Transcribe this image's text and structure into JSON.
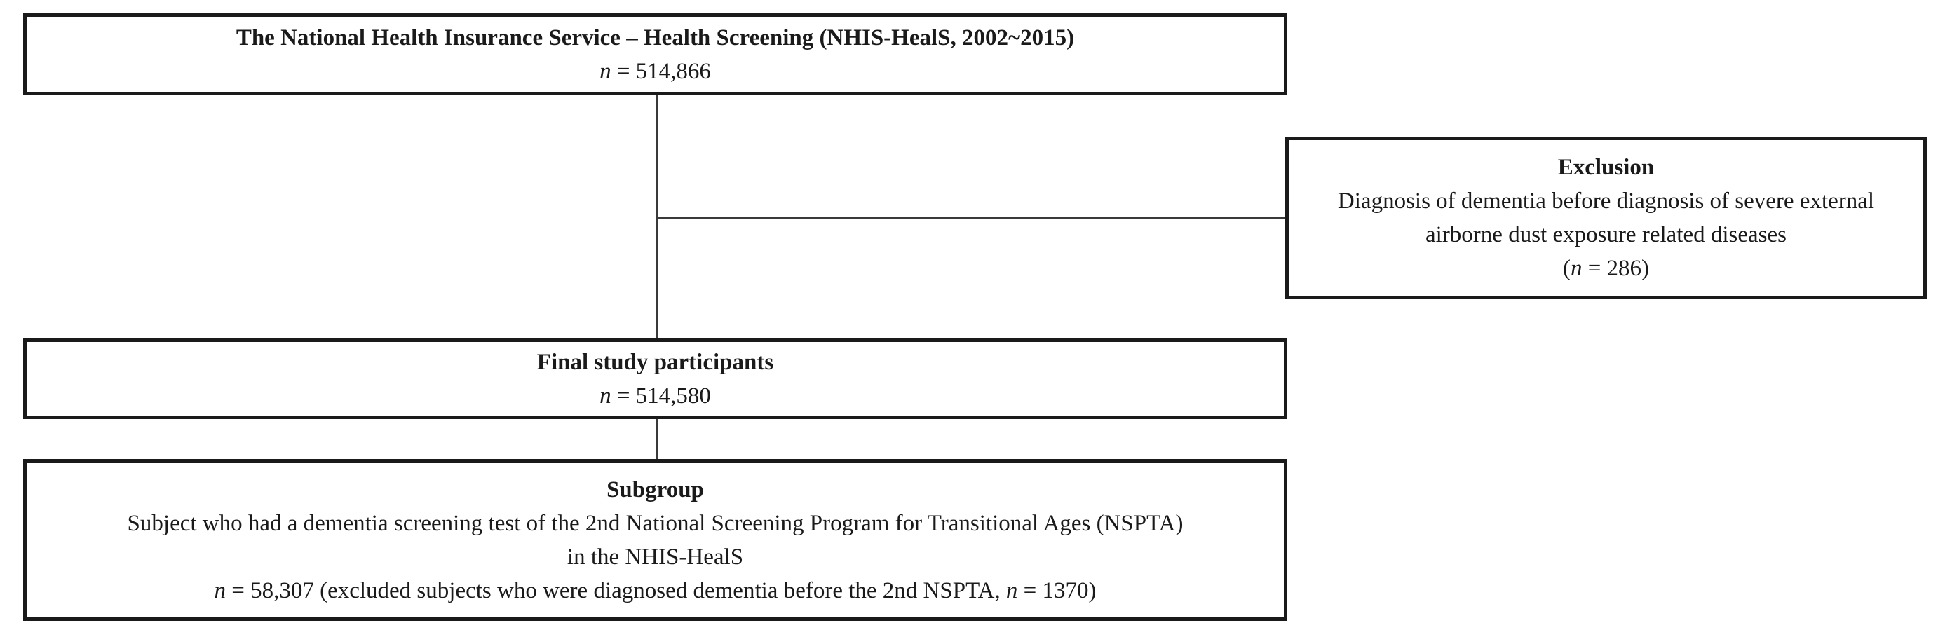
{
  "colors": {
    "box_border": "#1a1a1a",
    "text": "#1a1a1a",
    "connector": "#3a3a3a",
    "background": "#ffffff"
  },
  "flowchart": {
    "source": {
      "title": "The National Health Insurance Service – Health Screening (NHIS-HealS, 2002~2015)",
      "lines": [
        [
          {
            "t": "n",
            "i": true
          },
          {
            "t": " = 514,866"
          }
        ]
      ]
    },
    "exclusion": {
      "title": "Exclusion",
      "lines": [
        [
          {
            "t": "Diagnosis of dementia before diagnosis of severe external"
          }
        ],
        [
          {
            "t": "airborne dust exposure related diseases"
          }
        ],
        [
          {
            "t": "("
          },
          {
            "t": "n",
            "i": true
          },
          {
            "t": " = 286)"
          }
        ]
      ]
    },
    "final": {
      "title": "Final study participants",
      "lines": [
        [
          {
            "t": "n",
            "i": true
          },
          {
            "t": " = 514,580"
          }
        ]
      ]
    },
    "subgroup": {
      "title": "Subgroup",
      "lines": [
        [
          {
            "t": "Subject who had a dementia screening test of the 2nd National Screening Program for Transitional Ages (NSPTA)"
          }
        ],
        [
          {
            "t": "in the NHIS-HealS"
          }
        ],
        [
          {
            "t": "n",
            "i": true
          },
          {
            "t": " = 58,307 (excluded subjects who were diagnosed dementia before the 2nd NSPTA, "
          },
          {
            "t": "n",
            "i": true
          },
          {
            "t": " = 1370)"
          }
        ]
      ]
    }
  }
}
